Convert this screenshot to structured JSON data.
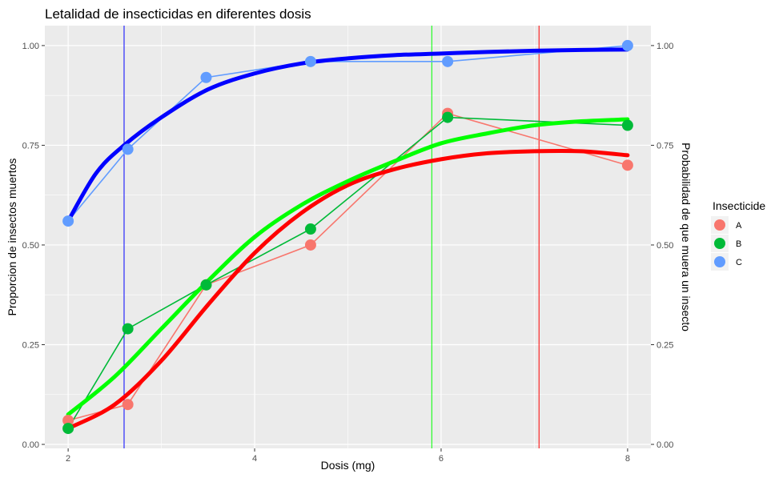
{
  "chart_data": {
    "type": "line",
    "title": "Letalidad de insecticidas en diferentes dosis",
    "xlabel": "Dosis (mg)",
    "ylabel": "Proporcion de insectos muertos",
    "ylabel_right": "Probabilidad de que muera un insecto",
    "xlim": [
      1.75,
      8.25
    ],
    "ylim": [
      -0.01,
      1.05
    ],
    "x_ticks": [
      2,
      4,
      6,
      8
    ],
    "x_tick_labels": [
      "2",
      "4",
      "6",
      "8"
    ],
    "y_ticks": [
      0,
      0.25,
      0.5,
      0.75,
      1
    ],
    "y_tick_labels": [
      "0.00",
      "0.25",
      "0.50",
      "0.75",
      "1.00"
    ],
    "grid": true,
    "legend_position": "right",
    "legend_title": "Insecticide",
    "series": [
      {
        "name": "A",
        "color": "#F8766D",
        "x": [
          2,
          2.64,
          3.48,
          4.6,
          6.07,
          8
        ],
        "y": [
          0.06,
          0.1,
          0.4,
          0.5,
          0.83,
          0.7
        ]
      },
      {
        "name": "B",
        "color": "#00BA38",
        "x": [
          2,
          2.64,
          3.48,
          4.6,
          6.07,
          8
        ],
        "y": [
          0.04,
          0.29,
          0.4,
          0.54,
          0.82,
          0.8
        ]
      },
      {
        "name": "C",
        "color": "#619CFF",
        "x": [
          2,
          2.64,
          3.48,
          4.6,
          6.07,
          8
        ],
        "y": [
          0.56,
          0.74,
          0.92,
          0.96,
          0.96,
          1.0
        ]
      }
    ],
    "fitted_curves": [
      {
        "color": "#FF0000",
        "x": [
          2,
          2.5,
          3,
          3.5,
          4,
          4.5,
          5,
          5.5,
          6,
          6.5,
          7,
          7.5,
          8
        ],
        "y": [
          0.04,
          0.1,
          0.21,
          0.35,
          0.48,
          0.58,
          0.65,
          0.69,
          0.715,
          0.73,
          0.735,
          0.735,
          0.725
        ]
      },
      {
        "color": "#00FF00",
        "x": [
          2,
          2.5,
          3,
          3.5,
          4,
          4.5,
          5,
          5.5,
          6,
          6.5,
          7,
          7.5,
          8
        ],
        "y": [
          0.075,
          0.17,
          0.29,
          0.41,
          0.52,
          0.6,
          0.66,
          0.71,
          0.755,
          0.78,
          0.8,
          0.81,
          0.815
        ]
      },
      {
        "color": "#0000FF",
        "x": [
          2,
          2.3,
          2.6,
          3,
          3.5,
          4,
          4.5,
          5,
          5.5,
          6,
          6.5,
          7,
          7.5,
          8
        ],
        "y": [
          0.56,
          0.68,
          0.75,
          0.82,
          0.89,
          0.93,
          0.955,
          0.968,
          0.976,
          0.98,
          0.984,
          0.987,
          0.989,
          0.99
        ]
      }
    ],
    "vlines": [
      {
        "x": 2.6,
        "color": "#0000FF"
      },
      {
        "x": 5.9,
        "color": "#00FF00"
      },
      {
        "x": 7.05,
        "color": "#FF0000"
      }
    ]
  }
}
